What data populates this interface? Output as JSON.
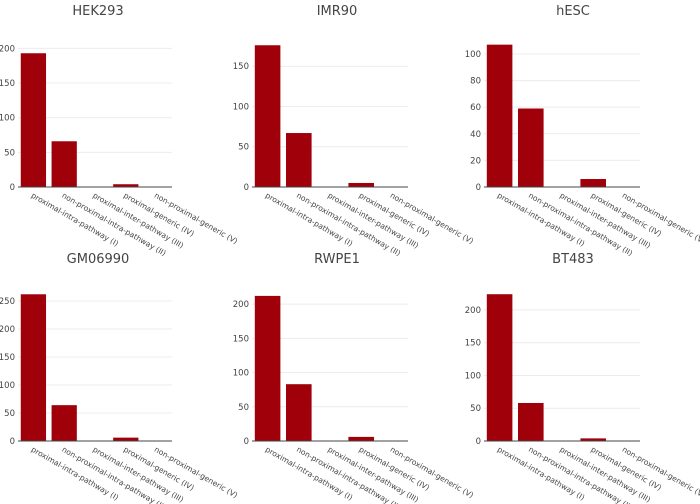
{
  "colors": {
    "bar": "#a0000a",
    "grid": "#ececec",
    "text": "#444444"
  },
  "chart_data": [
    {
      "type": "bar",
      "title": "HEK293",
      "categories": [
        "proximal-intra-pathway (I)",
        "non-proximal-intra-pathway (II)",
        "proximal-inter-pathway (III)",
        "proximal-generic (IV)",
        "non-proximal-generic (V)"
      ],
      "values": [
        193,
        66,
        0,
        4,
        0
      ],
      "yticks": [
        0,
        50,
        100,
        150,
        200
      ],
      "ylim": [
        0,
        215
      ],
      "grid": true
    },
    {
      "type": "bar",
      "title": "IMR90",
      "categories": [
        "proximal-intra-pathway (I)",
        "non-proximal-intra-pathway (II)",
        "proximal-inter-pathway (III)",
        "proximal-generic (IV)",
        "non-proximal-generic (V)"
      ],
      "values": [
        176,
        67,
        0,
        5,
        0
      ],
      "yticks": [
        0,
        50,
        100,
        150
      ],
      "ylim": [
        0,
        185
      ],
      "grid": true
    },
    {
      "type": "bar",
      "title": "hESC",
      "categories": [
        "proximal-intra-pathway (I)",
        "non-proximal-intra-pathway (II)",
        "proximal-inter-pathway (III)",
        "proximal-generic (IV)",
        "non-proximal-generic (V)"
      ],
      "values": [
        107,
        59,
        0,
        6,
        0
      ],
      "yticks": [
        0,
        20,
        40,
        60,
        80,
        100
      ],
      "ylim": [
        0,
        112
      ],
      "grid": true
    },
    {
      "type": "bar",
      "title": "GM06990",
      "categories": [
        "proximal-intra-pathway (I)",
        "non-proximal-intra-pathway (II)",
        "proximal-inter-pathway (III)",
        "proximal-generic (IV)",
        "non-proximal-generic (V)"
      ],
      "values": [
        262,
        64,
        0,
        6,
        0
      ],
      "yticks": [
        0,
        50,
        100,
        150,
        200,
        250
      ],
      "ylim": [
        0,
        275
      ],
      "grid": true
    },
    {
      "type": "bar",
      "title": "RWPE1",
      "categories": [
        "proximal-intra-pathway (I)",
        "non-proximal-intra-pathway (II)",
        "proximal-inter-pathway (III)",
        "proximal-generic (IV)",
        "non-proximal-generic (V)"
      ],
      "values": [
        212,
        83,
        0,
        6,
        0
      ],
      "yticks": [
        0,
        50,
        100,
        150,
        200
      ],
      "ylim": [
        0,
        225
      ],
      "grid": true
    },
    {
      "type": "bar",
      "title": "BT483",
      "categories": [
        "proximal-intra-pathway (I)",
        "non-proximal-intra-pathway (II)",
        "proximal-inter-pathway (III)",
        "proximal-generic (IV)",
        "non-proximal-generic (V)"
      ],
      "values": [
        224,
        58,
        0,
        4,
        0
      ],
      "yticks": [
        0,
        50,
        100,
        150,
        200
      ],
      "ylim": [
        0,
        235
      ],
      "grid": true
    }
  ]
}
